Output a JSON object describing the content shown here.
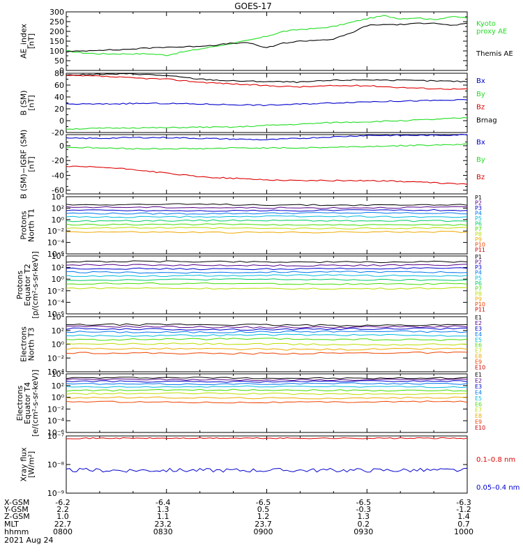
{
  "title": "GOES-17",
  "date": "2021 Aug 24",
  "colors": {
    "black": "#000000",
    "blue": "#0000cc",
    "green": "#22dd22",
    "red": "#dd0000",
    "kyoto": "#22dd22"
  },
  "footer": {
    "row_labels": [
      "X-GSM",
      "Y-GSM",
      "Z-GSM",
      "MLT",
      "hhmm"
    ],
    "columns": [
      {
        "time": "0800",
        "x": "-6.2",
        "y": "2.2",
        "z": "1.0",
        "mlt": "22.7"
      },
      {
        "time": "0830",
        "x": "-6.4",
        "y": "1.3",
        "z": "1.1",
        "mlt": "23.2"
      },
      {
        "time": "0900",
        "x": "-6.5",
        "y": "0.5",
        "z": "1.2",
        "mlt": "23.7"
      },
      {
        "time": "0930",
        "x": "-6.5",
        "y": "-0.3",
        "z": "1.3",
        "mlt": "0.2"
      },
      {
        "time": "1000",
        "x": "-6.3",
        "y": "-1.2",
        "z": "1.4",
        "mlt": "0.7"
      }
    ]
  },
  "chart_data": [
    {
      "type": "line",
      "ylabel": [
        "AE_index",
        "[nT]"
      ],
      "ylim": [
        0,
        300
      ],
      "yscale": "linear",
      "yticks": [
        "0",
        "50",
        "100",
        "150",
        "200",
        "250",
        "300"
      ],
      "x_minutes_from_0800": [
        0,
        5,
        10,
        15,
        20,
        25,
        30,
        35,
        40,
        45,
        50,
        55,
        60,
        65,
        70,
        75,
        80,
        85,
        90,
        95,
        100,
        105,
        110,
        115,
        120
      ],
      "series": [
        {
          "name": "Kyoto proxy AE",
          "color": "#22dd22",
          "values": [
            100,
            90,
            85,
            85,
            85,
            85,
            78,
            95,
            110,
            125,
            140,
            155,
            175,
            200,
            210,
            215,
            225,
            245,
            265,
            280,
            265,
            270,
            260,
            275,
            270
          ]
        },
        {
          "name": "Themis AE",
          "color": "#000000",
          "values": [
            95,
            100,
            105,
            105,
            110,
            115,
            120,
            120,
            125,
            130,
            140,
            140,
            115,
            140,
            150,
            155,
            160,
            190,
            230,
            235,
            235,
            240,
            245,
            230,
            240
          ]
        }
      ],
      "legend": [
        {
          "text": "Kyoto",
          "color": "#22dd22"
        },
        {
          "text": "proxy AE",
          "color": "#22dd22"
        },
        {
          "text": "Themis AE",
          "color": "#000000"
        }
      ]
    },
    {
      "type": "line",
      "ylabel": [
        "B (SM)",
        "[nT]"
      ],
      "ylim": [
        -20,
        80
      ],
      "yscale": "linear",
      "yticks": [
        "-20",
        "0",
        "20",
        "40",
        "60",
        "80"
      ],
      "x_minutes_from_0800": [
        0,
        10,
        20,
        30,
        40,
        50,
        60,
        70,
        80,
        90,
        100,
        110,
        120
      ],
      "series": [
        {
          "name": "Brnag",
          "color": "#000000",
          "values": [
            77,
            78,
            79,
            76,
            70,
            67,
            66,
            65,
            68,
            69,
            68,
            67,
            66
          ]
        },
        {
          "name": "Bz",
          "color": "#dd0000",
          "values": [
            76,
            75,
            72,
            70,
            65,
            62,
            59,
            57,
            59,
            59,
            56,
            54,
            53
          ]
        },
        {
          "name": "Bx",
          "color": "#0000cc",
          "values": [
            28,
            28,
            29,
            29,
            28,
            27,
            26,
            28,
            30,
            32,
            33,
            34,
            35
          ]
        },
        {
          "name": "By",
          "color": "#22dd22",
          "values": [
            -14,
            -13,
            -12,
            -12,
            -11,
            -11,
            -8,
            -6,
            -3,
            -2,
            0,
            2,
            5
          ]
        }
      ],
      "legend": [
        {
          "text": "Bx",
          "color": "#0000cc"
        },
        {
          "text": "By",
          "color": "#22dd22"
        },
        {
          "text": "Bz",
          "color": "#dd0000"
        },
        {
          "text": "Brnag",
          "color": "#000000"
        }
      ]
    },
    {
      "type": "line",
      "ylabel": [
        "B (SM)−IGRF (SM)",
        "[nT]"
      ],
      "ylim": [
        -65,
        15
      ],
      "yscale": "linear",
      "yticks": [
        "-60",
        "-40",
        "-20",
        "0"
      ],
      "x_minutes_from_0800": [
        0,
        10,
        20,
        30,
        40,
        50,
        60,
        70,
        80,
        90,
        100,
        110,
        120
      ],
      "series": [
        {
          "name": "Bx",
          "color": "#0000cc",
          "values": [
            10,
            10,
            11,
            11,
            10,
            9,
            8,
            10,
            12,
            14,
            14,
            14,
            15
          ]
        },
        {
          "name": "By",
          "color": "#22dd22",
          "values": [
            -2,
            -3,
            -4,
            -4,
            -4,
            -3,
            -3,
            -3,
            -2,
            -1,
            0,
            1,
            2
          ]
        },
        {
          "name": "Bz",
          "color": "#dd0000",
          "values": [
            -28,
            -29,
            -32,
            -37,
            -42,
            -44,
            -46,
            -47,
            -47,
            -47,
            -48,
            -50,
            -52
          ]
        }
      ],
      "legend": [
        {
          "text": "Bx",
          "color": "#0000cc"
        },
        {
          "text": "By",
          "color": "#22dd22"
        },
        {
          "text": "Bz",
          "color": "#dd0000"
        }
      ]
    },
    {
      "type": "line",
      "ylabel": [
        "Protons",
        "North T1"
      ],
      "ylim_log10": [
        -6,
        4
      ],
      "yscale": "log",
      "yticks": [
        "10⁴",
        "10²",
        "10⁰",
        "10⁻²",
        "10⁻⁴",
        "10⁻⁶"
      ],
      "log_levels": [
        2.6,
        2.1,
        1.6,
        1.1,
        0.5,
        -0.2,
        -0.9,
        -1.5,
        -2.2
      ],
      "legend": [
        {
          "text": "P1",
          "color": "#000000"
        },
        {
          "text": "P2",
          "color": "#550088"
        },
        {
          "text": "P3",
          "color": "#0000cc"
        },
        {
          "text": "P4",
          "color": "#0077ee"
        },
        {
          "text": "P5",
          "color": "#00bbdd"
        },
        {
          "text": "P6",
          "color": "#00cc66"
        },
        {
          "text": "P7",
          "color": "#44dd00"
        },
        {
          "text": "P8",
          "color": "#bbdd00"
        },
        {
          "text": "P9",
          "color": "#eeaa00"
        },
        {
          "text": "P10",
          "color": "#ee4400"
        },
        {
          "text": "P11",
          "color": "#cc0000"
        }
      ]
    },
    {
      "type": "line",
      "ylabel": [
        "Protons",
        "Equator T2",
        "[p/(cm²-s-sr-keV)]"
      ],
      "ylim_log10": [
        -6,
        4
      ],
      "yscale": "log",
      "yticks": [
        "10⁴",
        "10²",
        "10⁰",
        "10⁻²",
        "10⁻⁴",
        "10⁻⁶"
      ],
      "log_levels": [
        3.0,
        2.4,
        1.8,
        1.2,
        0.6,
        -0.1,
        -0.8,
        -1.6
      ],
      "legend": [
        {
          "text": "P1",
          "color": "#000000"
        },
        {
          "text": "P2",
          "color": "#550088"
        },
        {
          "text": "P3",
          "color": "#0000cc"
        },
        {
          "text": "P4",
          "color": "#0077ee"
        },
        {
          "text": "P5",
          "color": "#00bbdd"
        },
        {
          "text": "P6",
          "color": "#00cc66"
        },
        {
          "text": "P7",
          "color": "#44dd00"
        },
        {
          "text": "P8",
          "color": "#bbdd00"
        },
        {
          "text": "P9",
          "color": "#eeaa00"
        },
        {
          "text": "P10",
          "color": "#ee4400"
        },
        {
          "text": "P11",
          "color": "#cc0000"
        }
      ]
    },
    {
      "type": "line",
      "ylabel": [
        "Electrons",
        "North T3"
      ],
      "ylim_log10": [
        -4,
        4
      ],
      "yscale": "log",
      "yticks": [
        "10⁴",
        "10²",
        "10⁰",
        "10⁻²",
        "10⁻⁴"
      ],
      "log_levels": [
        2.8,
        2.5,
        2.2,
        1.8,
        1.3,
        0.7,
        0.0,
        -0.7,
        -1.3
      ],
      "legend": [
        {
          "text": "E1",
          "color": "#000000"
        },
        {
          "text": "E2",
          "color": "#550088"
        },
        {
          "text": "E3",
          "color": "#0000cc"
        },
        {
          "text": "E4",
          "color": "#0077ee"
        },
        {
          "text": "E5",
          "color": "#00bbdd"
        },
        {
          "text": "E6",
          "color": "#44dd00"
        },
        {
          "text": "E7",
          "color": "#bbdd00"
        },
        {
          "text": "E8",
          "color": "#eeaa00"
        },
        {
          "text": "E9",
          "color": "#ee4400"
        },
        {
          "text": "E10",
          "color": "#cc0000"
        }
      ]
    },
    {
      "type": "line",
      "ylabel": [
        "Electrons",
        "Equator T4",
        "[e/(cm²-s-sr-keV)]"
      ],
      "ylim_log10": [
        -6,
        4
      ],
      "yscale": "log",
      "yticks": [
        "10⁴",
        "10²",
        "10⁰",
        "10⁻²",
        "10⁻⁴",
        "10⁻⁶"
      ],
      "log_levels": [
        3.3,
        3.0,
        2.7,
        2.3,
        1.8,
        1.2,
        0.6,
        -0.1,
        -0.8
      ],
      "legend": [
        {
          "text": "E1",
          "color": "#000000"
        },
        {
          "text": "E2",
          "color": "#550088"
        },
        {
          "text": "E3",
          "color": "#0000cc"
        },
        {
          "text": "E4",
          "color": "#0077ee"
        },
        {
          "text": "E5",
          "color": "#00bbdd"
        },
        {
          "text": "E6",
          "color": "#44dd00"
        },
        {
          "text": "E7",
          "color": "#bbdd00"
        },
        {
          "text": "E8",
          "color": "#eeaa00"
        },
        {
          "text": "E9",
          "color": "#ee4400"
        },
        {
          "text": "E10",
          "color": "#cc0000"
        }
      ]
    },
    {
      "type": "line",
      "ylabel": [
        "Xray flux",
        "[W/m²]"
      ],
      "ylim_log10": [
        -9,
        -7
      ],
      "yscale": "log",
      "yticks": [
        "10⁻⁷",
        "10⁻⁸",
        "10⁻⁹"
      ],
      "series": [
        {
          "name": "0.1–0.8 nm",
          "color": "#dd0000",
          "log10_level": -7.08
        },
        {
          "name": "0.05–0.4 nm",
          "color": "#0000cc",
          "log10_level": -8.2
        }
      ],
      "legend": [
        {
          "text": "0.1–0.8 nm",
          "color": "#dd0000"
        },
        {
          "text": "0.05–0.4 nm",
          "color": "#0000cc"
        }
      ]
    }
  ]
}
